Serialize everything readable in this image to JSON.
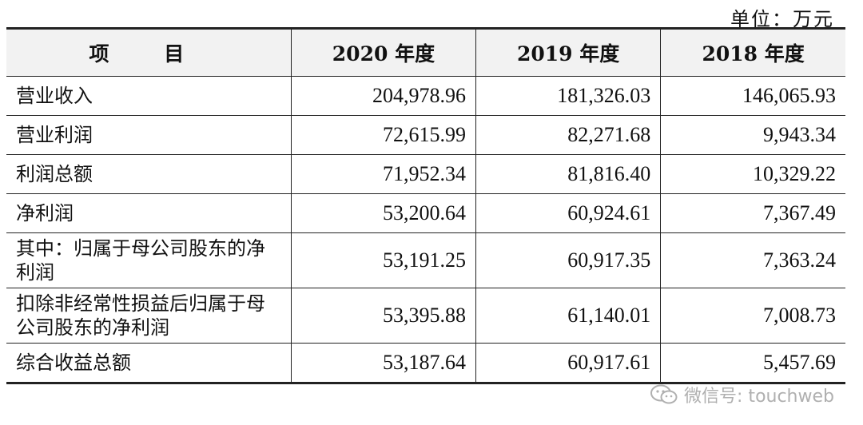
{
  "unit_label": "单位：万元",
  "headers": [
    "项 目",
    "2020 年度",
    "2019 年度",
    "2018 年度"
  ],
  "rows": [
    {
      "item": "营业收入",
      "y2020": "204,978.96",
      "y2019": "181,326.03",
      "y2018": "146,065.93"
    },
    {
      "item": "营业利润",
      "y2020": "72,615.99",
      "y2019": "82,271.68",
      "y2018": "9,943.34"
    },
    {
      "item": "利润总额",
      "y2020": "71,952.34",
      "y2019": "81,816.40",
      "y2018": "10,329.22"
    },
    {
      "item": "净利润",
      "y2020": "53,200.64",
      "y2019": "60,924.61",
      "y2018": "7,367.49"
    },
    {
      "item": "其中：归属于母公司股东的净利润",
      "y2020": "53,191.25",
      "y2019": "60,917.35",
      "y2018": "7,363.24"
    },
    {
      "item": "扣除非经常性损益后归属于母公司股东的净利润",
      "y2020": "53,395.88",
      "y2019": "61,140.01",
      "y2018": "7,008.73"
    },
    {
      "item": "综合收益总额",
      "y2020": "53,187.64",
      "y2019": "60,917.61",
      "y2018": "5,457.69"
    }
  ],
  "watermark": {
    "text": "微信号: touchweb",
    "icon": "wechat-icon"
  }
}
